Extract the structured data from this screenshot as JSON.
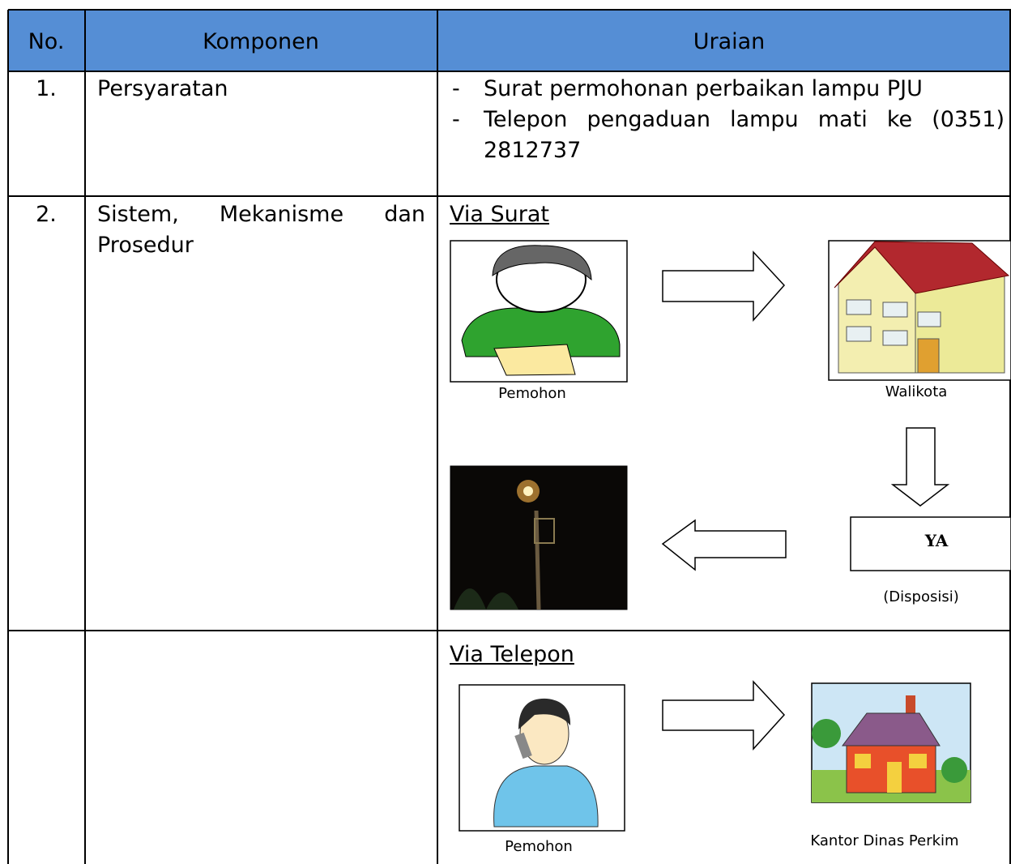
{
  "table": {
    "header": [
      "No.",
      "Komponen",
      "Uraian"
    ],
    "rows": [
      {
        "no": "1.",
        "komponen": "Persyaratan",
        "marker": "-",
        "uraian": [
          "Surat permohonan perbaikan lampu PJU",
          "Telepon pengaduan lampu mati ke (0351) 2812737"
        ]
      },
      {
        "no": "2.",
        "komponen": "Sistem, Mekanisme dan Prosedur",
        "heading": "Via Surat",
        "labels": [
          "Pemohon",
          "Walikota",
          "YA",
          "(Disposisi)"
        ]
      },
      {
        "heading": "Via Telepon",
        "labels": [
          "Pemohon",
          "Kantor Dinas Perkim"
        ]
      }
    ]
  }
}
